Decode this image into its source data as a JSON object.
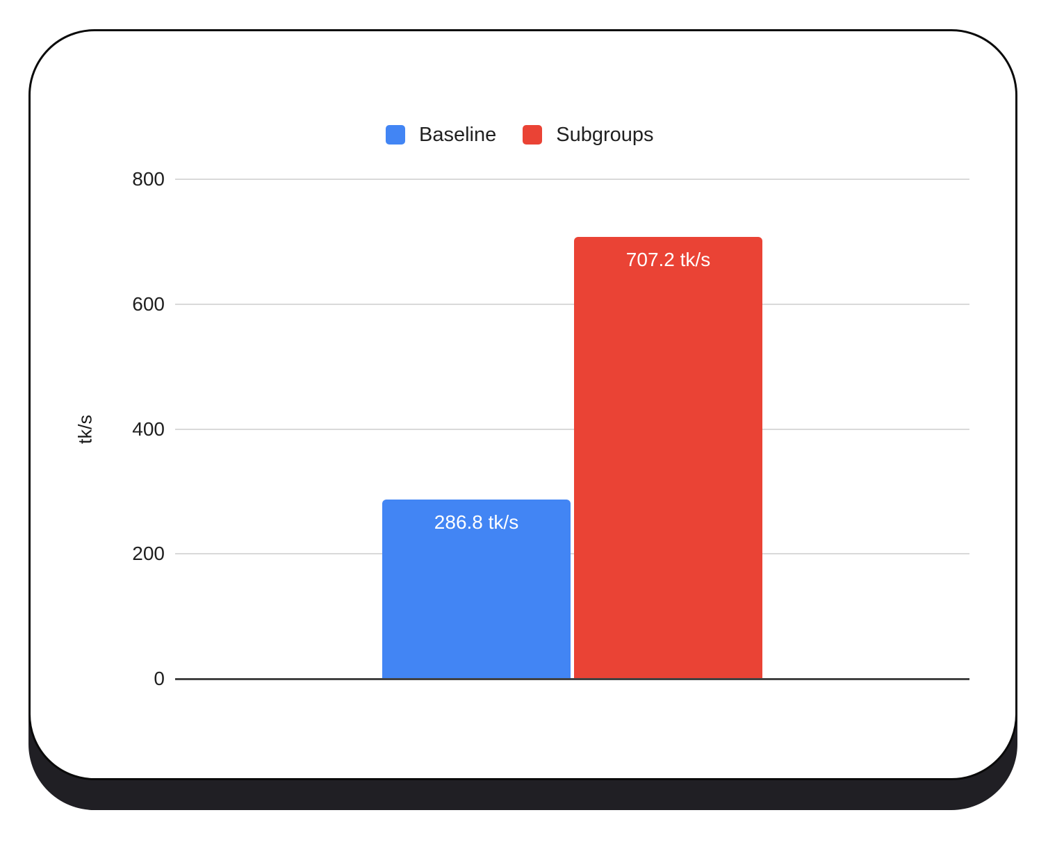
{
  "chart_data": {
    "type": "bar",
    "title": "",
    "ylabel": "tk/s",
    "categories": [
      ""
    ],
    "series": [
      {
        "name": "Baseline",
        "value": 286.8,
        "label": "286.8 tk/s",
        "color": "#4285F4",
        "label_color": "#ffffff"
      },
      {
        "name": "Subgroups",
        "value": 707.2,
        "label": "707.2 tk/s",
        "color": "#EA4335",
        "label_color": "#ffffff"
      }
    ],
    "ylim": [
      0,
      800
    ],
    "yticks": [
      0,
      200,
      400,
      600,
      800
    ],
    "grid": true,
    "legend_position": "top"
  },
  "style": {
    "grid_color": "#d9d9d9",
    "zero_line_color": "#424242",
    "card_border_color": "#0a0a0a",
    "card_shadow_color": "#201f24",
    "background": "#ffffff"
  }
}
